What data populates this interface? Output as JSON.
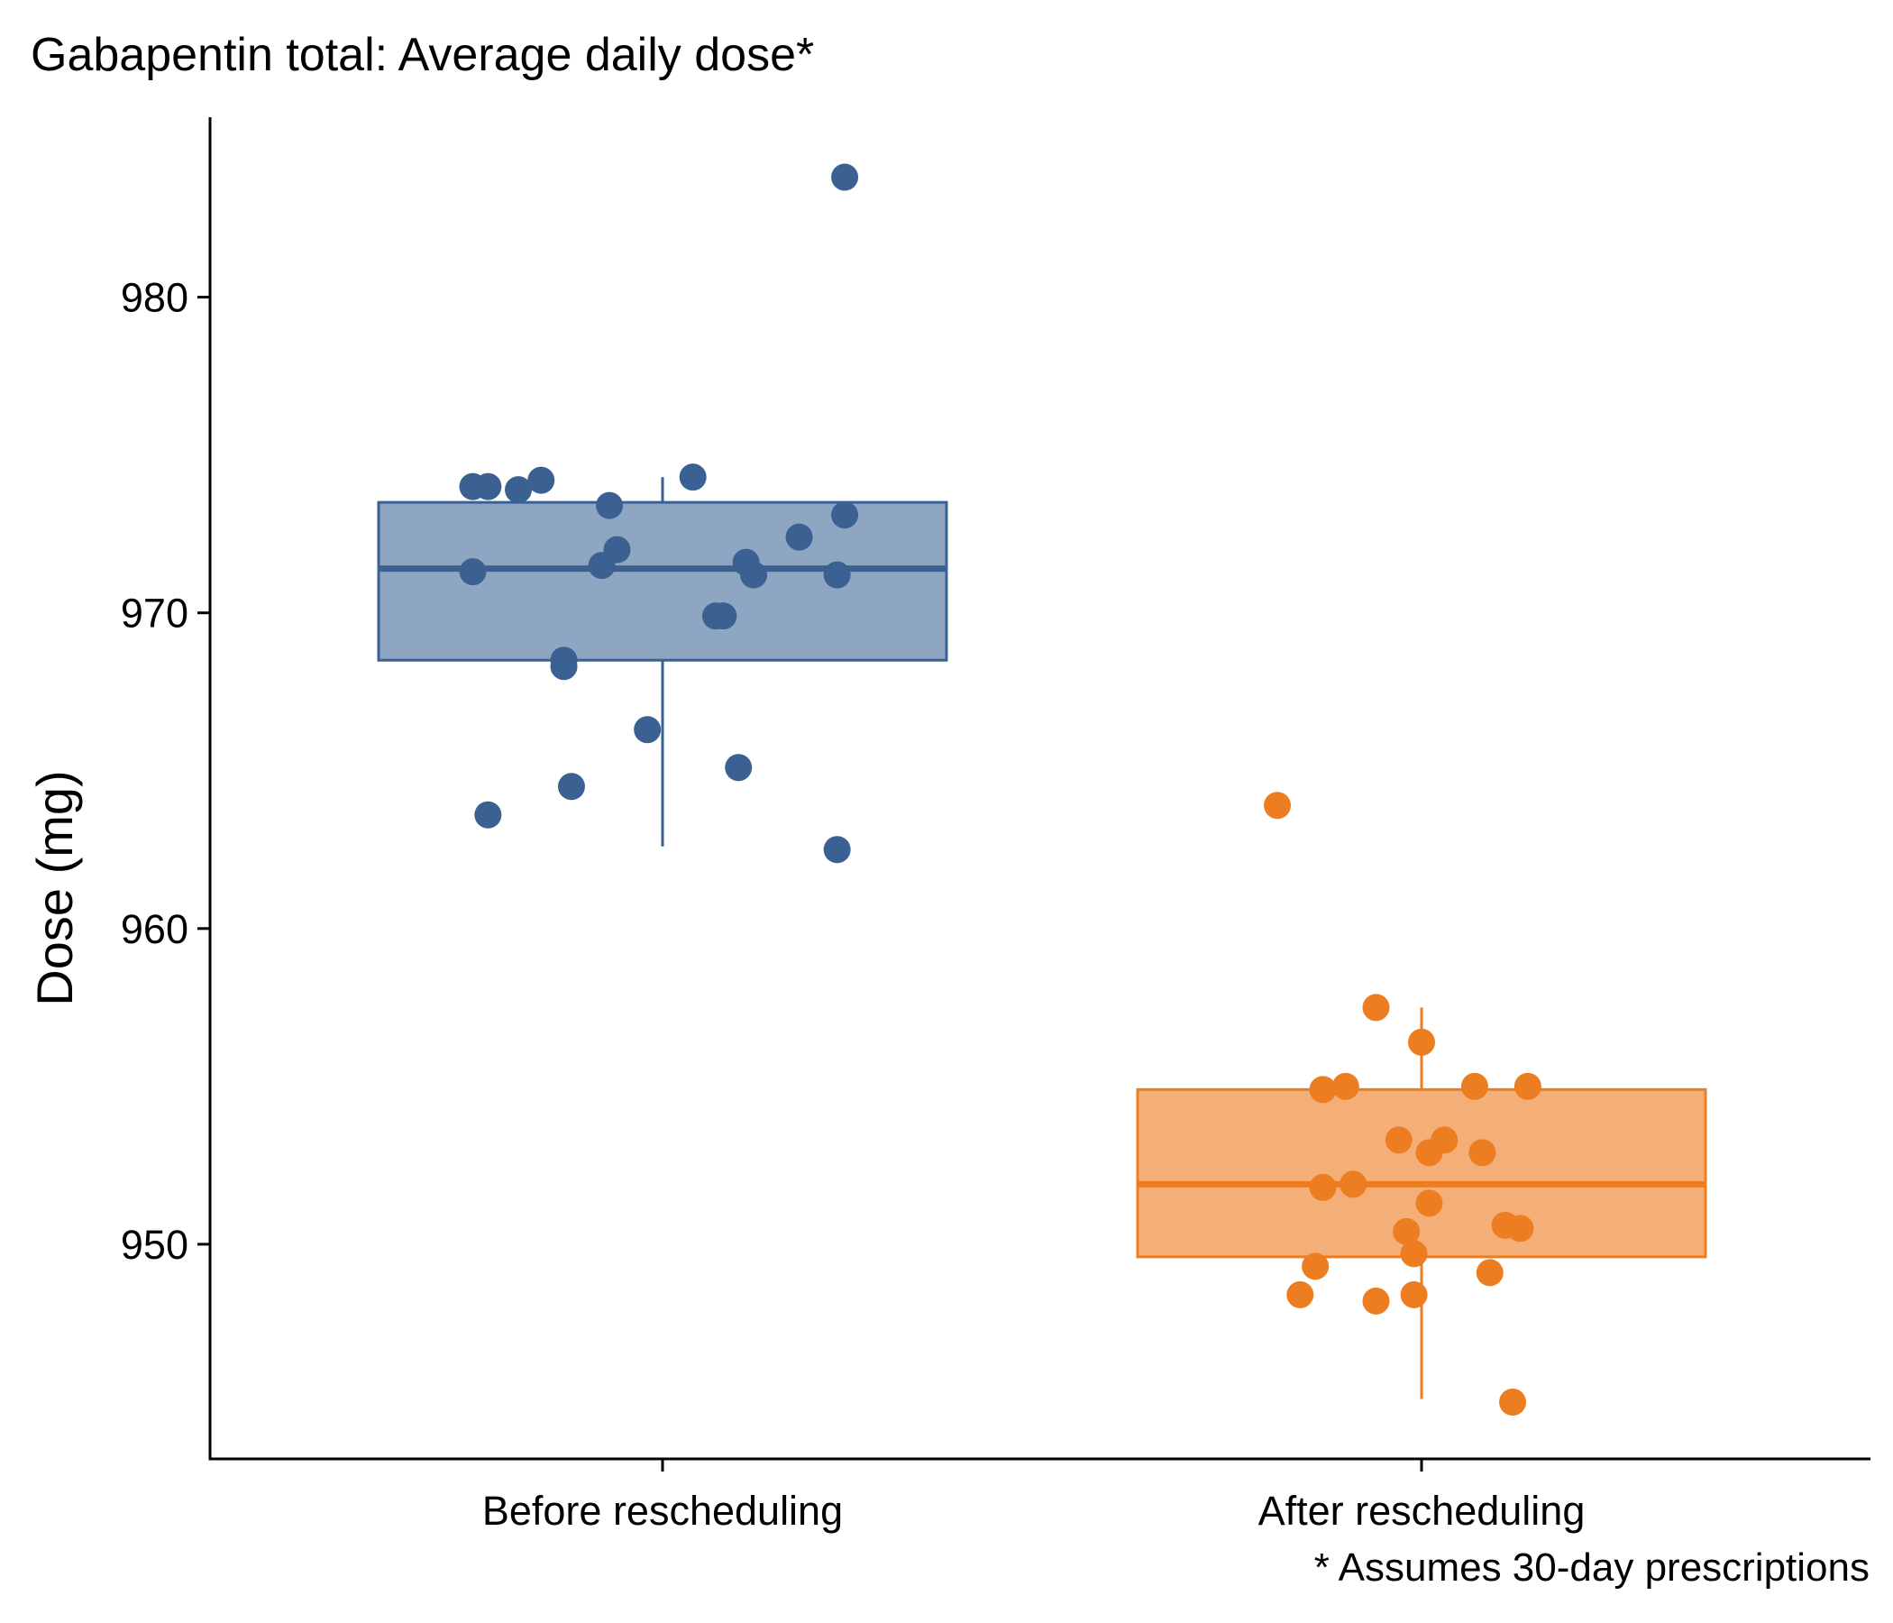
{
  "chart_data": {
    "type": "box",
    "title": "Gabapentin total: Average daily dose*",
    "xlabel": "",
    "ylabel": "Dose (mg)",
    "caption": "* Assumes 30-day prescriptions",
    "ylim": [
      943.2,
      985.7
    ],
    "yticks": [
      950,
      960,
      970,
      980
    ],
    "grid": false,
    "legend": "none",
    "categories": [
      "Before rescheduling",
      "After rescheduling"
    ],
    "series": [
      {
        "category": "Before rescheduling",
        "color": "#3b6193",
        "fill": "#8fa6c3",
        "box": {
          "q1": 968.5,
          "median": 971.4,
          "q3": 973.5,
          "whisker_low": 962.6,
          "whisker_high": 974.3
        },
        "points": [
          {
            "x": -0.25,
            "y": 974.0
          },
          {
            "x": -0.23,
            "y": 974.0
          },
          {
            "x": -0.19,
            "y": 973.9
          },
          {
            "x": -0.16,
            "y": 974.2
          },
          {
            "x": -0.07,
            "y": 973.4
          },
          {
            "x": 0.04,
            "y": 974.3
          },
          {
            "x": 0.24,
            "y": 973.1
          },
          {
            "x": 0.18,
            "y": 972.4
          },
          {
            "x": -0.06,
            "y": 972.0
          },
          {
            "x": -0.08,
            "y": 971.5
          },
          {
            "x": -0.25,
            "y": 971.3
          },
          {
            "x": 0.11,
            "y": 971.6
          },
          {
            "x": 0.12,
            "y": 971.2
          },
          {
            "x": 0.23,
            "y": 971.2
          },
          {
            "x": 0.07,
            "y": 969.9
          },
          {
            "x": 0.08,
            "y": 969.9
          },
          {
            "x": -0.13,
            "y": 968.5
          },
          {
            "x": -0.13,
            "y": 968.3
          },
          {
            "x": -0.02,
            "y": 966.3
          },
          {
            "x": 0.1,
            "y": 965.1
          },
          {
            "x": -0.12,
            "y": 964.5
          },
          {
            "x": -0.23,
            "y": 963.6
          },
          {
            "x": 0.23,
            "y": 962.5
          },
          {
            "x": 0.24,
            "y": 983.8
          }
        ]
      },
      {
        "category": "After rescheduling",
        "color": "#ed7d21",
        "fill": "#f4af79",
        "box": {
          "q1": 949.6,
          "median": 951.9,
          "q3": 954.9,
          "whisker_low": 945.1,
          "whisker_high": 957.5
        },
        "points": [
          {
            "x": -0.19,
            "y": 963.9
          },
          {
            "x": -0.06,
            "y": 957.5
          },
          {
            "x": 0.0,
            "y": 956.4
          },
          {
            "x": -0.13,
            "y": 954.9
          },
          {
            "x": -0.1,
            "y": 955.0
          },
          {
            "x": 0.07,
            "y": 955.0
          },
          {
            "x": 0.14,
            "y": 955.0
          },
          {
            "x": -0.03,
            "y": 953.3
          },
          {
            "x": 0.01,
            "y": 952.9
          },
          {
            "x": 0.03,
            "y": 953.3
          },
          {
            "x": 0.08,
            "y": 952.9
          },
          {
            "x": -0.13,
            "y": 951.8
          },
          {
            "x": -0.09,
            "y": 951.9
          },
          {
            "x": 0.01,
            "y": 951.3
          },
          {
            "x": -0.02,
            "y": 950.4
          },
          {
            "x": -0.01,
            "y": 949.7
          },
          {
            "x": 0.11,
            "y": 950.6
          },
          {
            "x": 0.13,
            "y": 950.5
          },
          {
            "x": -0.14,
            "y": 949.3
          },
          {
            "x": 0.09,
            "y": 949.1
          },
          {
            "x": -0.16,
            "y": 948.4
          },
          {
            "x": -0.06,
            "y": 948.2
          },
          {
            "x": -0.01,
            "y": 948.4
          },
          {
            "x": 0.12,
            "y": 945.0
          }
        ]
      }
    ]
  }
}
